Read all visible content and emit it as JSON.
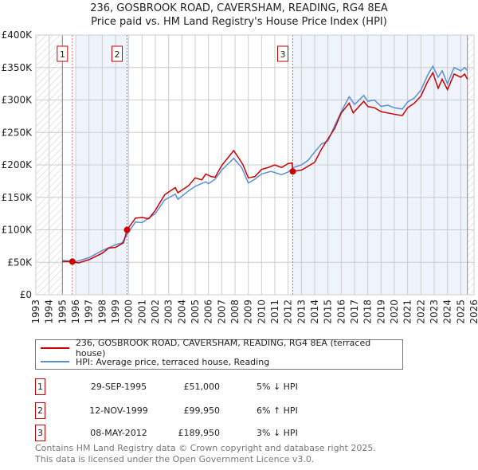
{
  "title": "236, GOSBROOK ROAD, CAVERSHAM, READING, RG4 8EA",
  "subtitle": "Price paid vs. HM Land Registry's House Price Index (HPI)",
  "colors": {
    "property": "#cc0000",
    "hpi": "#5b8fd4",
    "shade": "#eef3fc"
  },
  "chart_data": {
    "type": "line",
    "xlim": [
      1993,
      2026
    ],
    "ylim": [
      0,
      400000
    ],
    "x_ticks": [
      "1993",
      "1994",
      "1995",
      "1996",
      "1997",
      "1998",
      "1999",
      "2000",
      "2001",
      "2002",
      "2003",
      "2004",
      "2005",
      "2006",
      "2007",
      "2008",
      "2009",
      "2010",
      "2011",
      "2012",
      "2013",
      "2014",
      "2015",
      "2016",
      "2017",
      "2018",
      "2019",
      "2020",
      "2021",
      "2022",
      "2023",
      "2024",
      "2025",
      "2026"
    ],
    "y_ticks": [
      {
        "v": 0,
        "label": "£0"
      },
      {
        "v": 50000,
        "label": "£50K"
      },
      {
        "v": 100000,
        "label": "£100K"
      },
      {
        "v": 150000,
        "label": "£150K"
      },
      {
        "v": 200000,
        "label": "£200K"
      },
      {
        "v": 250000,
        "label": "£250K"
      },
      {
        "v": 300000,
        "label": "£300K"
      },
      {
        "v": 350000,
        "label": "£350K"
      },
      {
        "v": 400000,
        "label": "£400K"
      }
    ],
    "hatched": [
      [
        1993,
        1995
      ],
      [
        2025.5,
        2026
      ]
    ],
    "shaded": [
      [
        1996,
        2000
      ],
      [
        2012.35,
        2025.5
      ]
    ],
    "series": [
      {
        "name": "236, GOSBROOK ROAD, CAVERSHAM, READING, RG4 8EA (terraced house)",
        "x": [
          1995,
          1995.75,
          1996.2,
          1997,
          1998,
          1998.5,
          1999,
          1999.6,
          1999.87,
          2000.5,
          2001,
          2001.5,
          2002,
          2002.7,
          2003.5,
          2003.7,
          2004.5,
          2005,
          2005.5,
          2005.8,
          2006.2,
          2006.5,
          2007,
          2007.9,
          2008.3,
          2008.6,
          2009,
          2009.5,
          2010,
          2010.5,
          2011,
          2011.5,
          2012,
          2012.3,
          2012.35,
          2013,
          2013.5,
          2014,
          2014.5,
          2015,
          2015.5,
          2016,
          2016.6,
          2016.9,
          2017.7,
          2018,
          2018.5,
          2019,
          2019.5,
          2020,
          2020.6,
          2021,
          2021.5,
          2022,
          2022.5,
          2022.9,
          2023.3,
          2023.6,
          2024,
          2024.5,
          2025,
          2025.3,
          2025.5
        ],
        "y": [
          51000,
          51000,
          49000,
          54000,
          64000,
          72000,
          73000,
          80000,
          99950,
          118000,
          119000,
          117000,
          130000,
          154000,
          165000,
          157000,
          168000,
          180000,
          177000,
          186000,
          182000,
          181000,
          199000,
          222000,
          210000,
          200000,
          180000,
          182000,
          193000,
          196000,
          200000,
          196000,
          202000,
          203000,
          189950,
          192000,
          198000,
          204000,
          224000,
          240000,
          256000,
          280000,
          295000,
          280000,
          298000,
          290000,
          288000,
          282000,
          280000,
          278000,
          276000,
          288000,
          295000,
          306000,
          328000,
          342000,
          318000,
          332000,
          316000,
          340000,
          335000,
          340000,
          332000
        ]
      },
      {
        "name": "HPI: Average price, terraced house, Reading",
        "x": [
          1995,
          1996,
          1997,
          1998,
          1999,
          1999.5,
          1999.9,
          2000.5,
          2001,
          2002,
          2002.7,
          2003.5,
          2003.7,
          2004.5,
          2005,
          2005.8,
          2006,
          2006.5,
          2007,
          2007.9,
          2008.5,
          2009,
          2009.5,
          2010,
          2010.7,
          2011.5,
          2012,
          2012.4,
          2013,
          2013.5,
          2014,
          2014.5,
          2015,
          2015.5,
          2016,
          2016.6,
          2017,
          2017.7,
          2018,
          2018.5,
          2019,
          2019.5,
          2020,
          2020.6,
          2021,
          2021.5,
          2022,
          2022.5,
          2022.9,
          2023.3,
          2023.6,
          2024,
          2024.5,
          2025,
          2025.3,
          2025.5
        ],
        "y": [
          53000,
          51000,
          57000,
          68000,
          77000,
          80000,
          94000,
          112000,
          111000,
          125000,
          146000,
          155000,
          147000,
          160000,
          167000,
          174000,
          171000,
          178000,
          192000,
          210000,
          196000,
          172000,
          178000,
          186000,
          190000,
          185000,
          189000,
          196000,
          200000,
          207000,
          220000,
          232000,
          237000,
          260000,
          282000,
          305000,
          293000,
          307000,
          298000,
          300000,
          290000,
          292000,
          288000,
          286000,
          297000,
          303000,
          315000,
          338000,
          352000,
          335000,
          345000,
          325000,
          350000,
          345000,
          350000,
          345000
        ]
      }
    ],
    "sales": [
      {
        "label": "1",
        "x": 1995.75,
        "y": 51000
      },
      {
        "label": "2",
        "x": 1999.87,
        "y": 99950
      },
      {
        "label": "3",
        "x": 2012.35,
        "y": 189950
      }
    ]
  },
  "legend": {
    "property": "236, GOSBROOK ROAD, CAVERSHAM, READING, RG4 8EA (terraced house)",
    "hpi": "HPI: Average price, terraced house, Reading"
  },
  "sales_table": [
    {
      "num": "1",
      "date": "29-SEP-1995",
      "price": "£51,000",
      "hpi": "5% ↓ HPI"
    },
    {
      "num": "2",
      "date": "12-NOV-1999",
      "price": "£99,950",
      "hpi": "6% ↑ HPI"
    },
    {
      "num": "3",
      "date": "08-MAY-2012",
      "price": "£189,950",
      "hpi": "3% ↓ HPI"
    }
  ],
  "footer": {
    "line1": "Contains HM Land Registry data © Crown copyright and database right 2025.",
    "line2": "This data is licensed under the Open Government Licence v3.0."
  }
}
